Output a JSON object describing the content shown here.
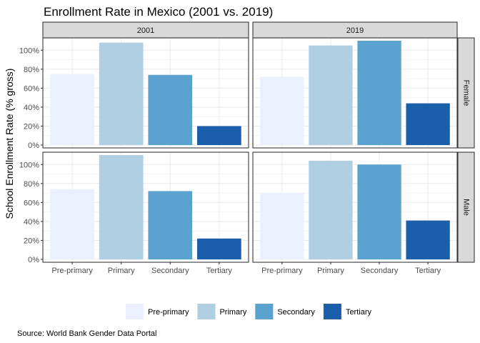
{
  "chart_data": {
    "type": "bar",
    "title": "Enrollment Rate in Mexico (2001 vs. 2019)",
    "ylabel": "School Enrollment Rate (% gross)",
    "xlabel": "",
    "caption": "Source: World Bank Gender Data Portal",
    "categories": [
      "Pre-primary",
      "Primary",
      "Secondary",
      "Tertiary"
    ],
    "colors": {
      "Pre-primary": "#eaf0fd",
      "Primary": "#b0cfe3",
      "Secondary": "#5ba2d0",
      "Tertiary": "#1b5eaa"
    },
    "ylim": [
      -3,
      113
    ],
    "yticks": [
      0,
      20,
      40,
      60,
      80,
      100
    ],
    "ytick_labels": [
      "0%",
      "20%",
      "40%",
      "60%",
      "80%",
      "100%"
    ],
    "facet_cols": [
      "2001",
      "2019"
    ],
    "facet_rows": [
      "Female",
      "Male"
    ],
    "panels": [
      {
        "col": "2001",
        "row": "Female",
        "values": [
          75,
          108,
          74,
          20
        ]
      },
      {
        "col": "2019",
        "row": "Female",
        "values": [
          72,
          105,
          110,
          44
        ]
      },
      {
        "col": "2001",
        "row": "Male",
        "values": [
          74,
          110,
          72,
          22
        ]
      },
      {
        "col": "2019",
        "row": "Male",
        "values": [
          70,
          104,
          100,
          41
        ]
      }
    ],
    "legend": {
      "position": "bottom",
      "entries": [
        "Pre-primary",
        "Primary",
        "Secondary",
        "Tertiary"
      ]
    },
    "grid": true
  }
}
